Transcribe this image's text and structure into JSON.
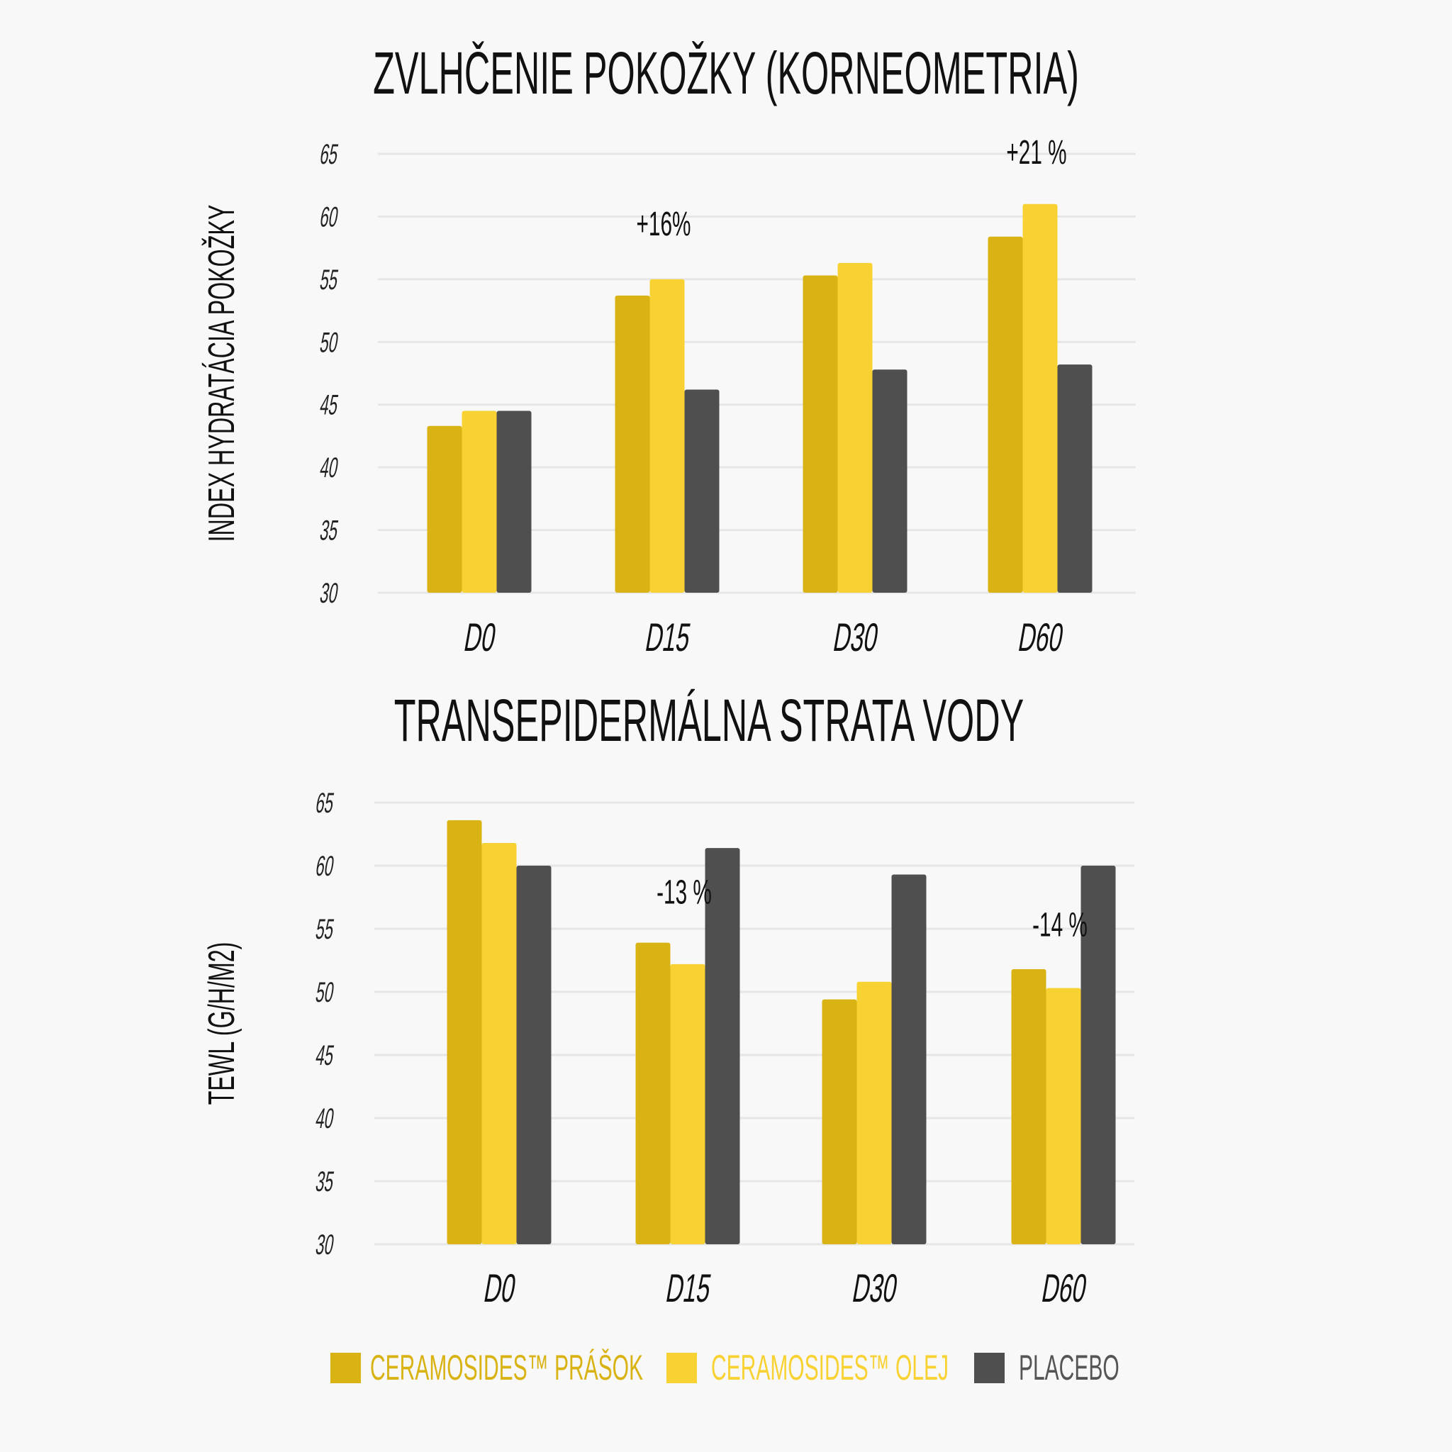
{
  "colors": {
    "prasok": "#D9B213",
    "olej": "#F8D232",
    "placebo": "#4F4F4F",
    "grid": "#E6E6E6",
    "text": "#111111"
  },
  "legend": [
    {
      "label": "CERAMOSIDES™ PRÁŠOK",
      "color": "#D9B213",
      "text_color": "#D9B213"
    },
    {
      "label": "CERAMOSIDES™ OLEJ",
      "color": "#F8D232",
      "text_color": "#F8D232"
    },
    {
      "label": "PLACEBO",
      "color": "#4F4F4F",
      "text_color": "#555555"
    }
  ],
  "chart_data": [
    {
      "type": "bar",
      "title": "ZVLHČENIE POKOŽKY (KORNEOMETRIA)",
      "xlabel": "",
      "ylabel": "INDEX HYDRATÁCIA POKOŽKY",
      "ylim": [
        30,
        65
      ],
      "yticks": [
        "30",
        "35",
        "40",
        "45",
        "50",
        "55",
        "60",
        "65"
      ],
      "grid": true,
      "categories": [
        "D0",
        "D15",
        "D30",
        "D60"
      ],
      "series": [
        {
          "name": "CERAMOSIDES™ PRÁŠOK",
          "values": [
            43.3,
            53.7,
            55.3,
            58.4
          ]
        },
        {
          "name": "CERAMOSIDES™ OLEJ",
          "values": [
            44.5,
            55.0,
            56.3,
            61.0
          ]
        },
        {
          "name": "PLACEBO",
          "values": [
            44.5,
            46.2,
            47.8,
            48.2
          ]
        }
      ],
      "annotations": [
        {
          "category": "D15",
          "text": "+16%",
          "y": 58.5
        },
        {
          "category": "D60",
          "text": "+21 %",
          "y": 64.2
        }
      ]
    },
    {
      "type": "bar",
      "title": "TRANSEPIDERMÁLNA STRATA VODY",
      "xlabel": "",
      "ylabel": "TEWL (G/H/M2)",
      "ylim": [
        30,
        65
      ],
      "yticks": [
        "30",
        "35",
        "40",
        "45",
        "50",
        "55",
        "60",
        "65"
      ],
      "grid": true,
      "categories": [
        "D0",
        "D15",
        "D30",
        "D60"
      ],
      "series": [
        {
          "name": "CERAMOSIDES™ PRÁŠOK",
          "values": [
            63.6,
            53.9,
            49.4,
            51.8
          ]
        },
        {
          "name": "CERAMOSIDES™ OLEJ",
          "values": [
            61.8,
            52.2,
            50.8,
            50.3
          ]
        },
        {
          "name": "PLACEBO",
          "values": [
            60.0,
            61.4,
            59.3,
            60.0
          ]
        }
      ],
      "annotations": [
        {
          "category": "D15",
          "text": "-13 %",
          "y": 57.0
        },
        {
          "category": "D60",
          "text": "-14 %",
          "y": 54.4
        }
      ]
    }
  ]
}
